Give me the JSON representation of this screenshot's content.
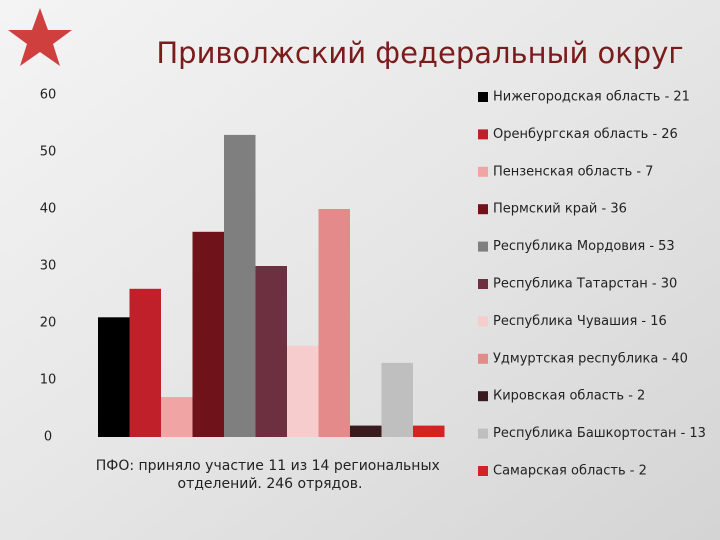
{
  "chart_data": {
    "type": "bar",
    "title": "Приволжский федеральный округ",
    "x_label": "ПФО: приняло участие 11 из 14 региональных отделений. 246 отрядов.",
    "categories": [
      null
    ],
    "series": [
      {
        "name": "Нижегородская область - 21",
        "color": "#000000",
        "values": [
          21
        ]
      },
      {
        "name": "Оренбургская область - 26",
        "color": "#c0202a",
        "values": [
          26
        ]
      },
      {
        "name": "Пензенская область - 7",
        "color": "#f0a4a4",
        "values": [
          7
        ]
      },
      {
        "name": "Пермский край - 36",
        "color": "#70121a",
        "values": [
          36
        ]
      },
      {
        "name": "Республика Мордовия - 53",
        "color": "#7f7f7f",
        "values": [
          53
        ]
      },
      {
        "name": "Республика Татарстан - 30",
        "color": "#6c3040",
        "values": [
          30
        ]
      },
      {
        "name": "Республика Чувашия - 16",
        "color": "#f6cccc",
        "values": [
          16
        ]
      },
      {
        "name": "Удмуртская республика - 40",
        "color": "#e58a8a",
        "values": [
          40
        ]
      },
      {
        "name": "Кировская область - 2",
        "color": "#3a1a1e",
        "values": [
          2
        ]
      },
      {
        "name": "Республика Башкортостан - 13",
        "color": "#bfbfbf",
        "values": [
          13
        ]
      },
      {
        "name": "Самарская область - 2",
        "color": "#d42222",
        "values": [
          2
        ]
      }
    ],
    "ylim": [
      0,
      60
    ],
    "yticks": [
      0,
      10,
      20,
      30,
      40,
      50,
      60
    ],
    "legend": "right"
  }
}
